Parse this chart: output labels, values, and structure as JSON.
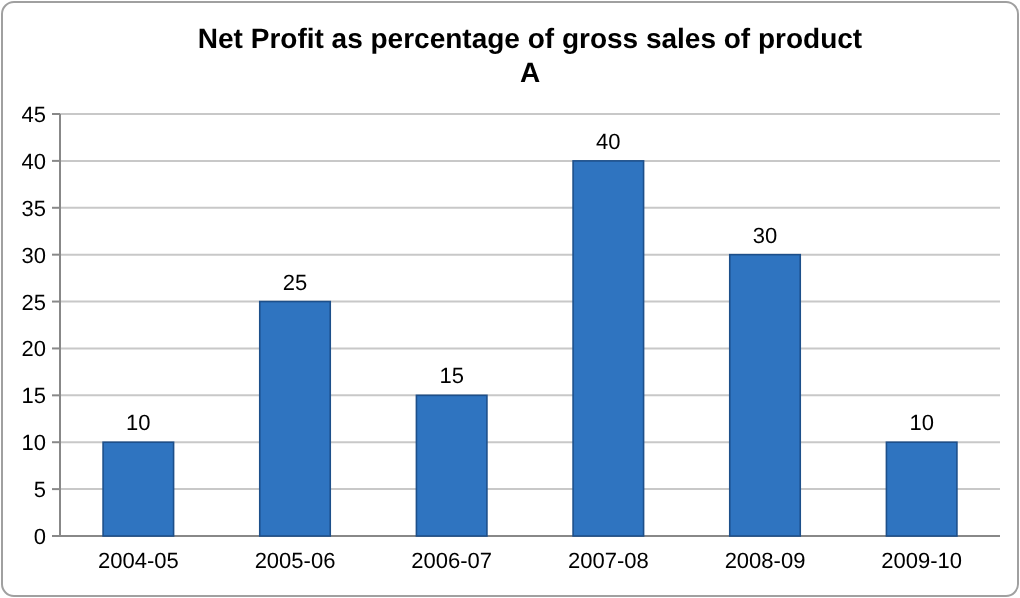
{
  "chart_data": {
    "type": "bar",
    "title": "Net Profit as percentage of gross sales of product A",
    "categories": [
      "2004-05",
      "2005-06",
      "2006-07",
      "2007-08",
      "2008-09",
      "2009-10"
    ],
    "values": [
      10,
      25,
      15,
      40,
      30,
      10
    ],
    "color": "#2f74c0",
    "ylim": [
      0,
      45
    ],
    "yticks": [
      0,
      5,
      10,
      15,
      20,
      25,
      30,
      35,
      40,
      45
    ],
    "grid": "y",
    "data_labels": true
  }
}
